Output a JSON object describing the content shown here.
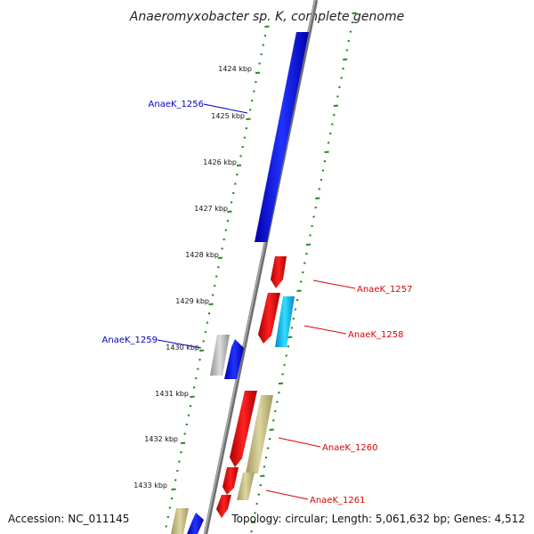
{
  "title": "Anaeromyxobacter sp. K, complete genome",
  "accession": "Accession: NC_011145",
  "topology": "Topology: circular; Length: 5,061,632 bp; Genes: 4,512",
  "kbp_ticks": [
    "1424 kbp",
    "1425 kbp",
    "1426 kbp",
    "1427 kbp",
    "1428 kbp",
    "1429 kbp",
    "1430 kbp",
    "1431 kbp",
    "1432 kbp",
    "1433 kbp"
  ],
  "genes": [
    {
      "label": "AnaeK_1256",
      "color": "#0000cc"
    },
    {
      "label": "AnaeK_1257",
      "color": "#dd0000"
    },
    {
      "label": "AnaeK_1258",
      "color": "#dd0000"
    },
    {
      "label": "AnaeK_1259",
      "color": "#0000cc"
    },
    {
      "label": "AnaeK_1260",
      "color": "#dd0000"
    },
    {
      "label": "AnaeK_1261",
      "color": "#dd0000"
    }
  ],
  "colors": {
    "forward_cds": "#0000ee",
    "reverse_cds": "#ee0000",
    "cyan_cds": "#00bbee",
    "khaki_cds": "#c8c080",
    "gray_cds": "#b4b4b4",
    "backbone": "#888888",
    "ticks": "#228b22"
  }
}
